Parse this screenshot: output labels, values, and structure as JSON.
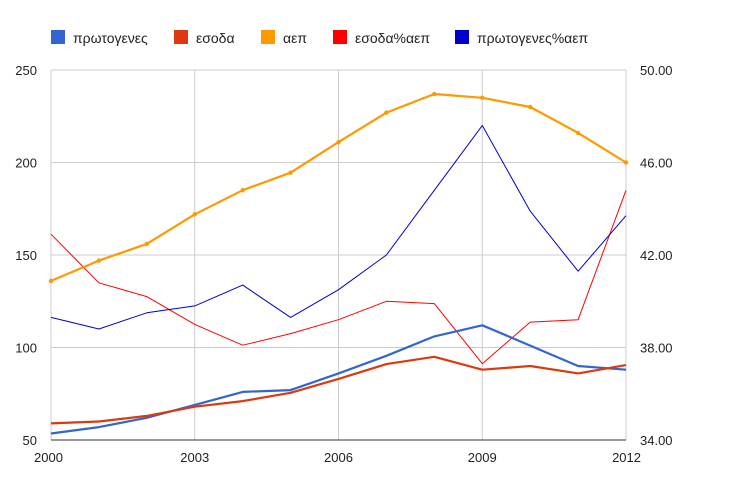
{
  "chart_data": {
    "type": "line",
    "title": "",
    "xlabel": "",
    "ylabel_left": "",
    "ylabel_right": "",
    "x": [
      2000,
      2001,
      2002,
      2003,
      2004,
      2005,
      2006,
      2007,
      2008,
      2009,
      2010,
      2011,
      2012
    ],
    "x_ticks": [
      "2000",
      "2003",
      "2006",
      "2009",
      "2012"
    ],
    "y_left_range": [
      50,
      250
    ],
    "y_left_ticks": [
      "50",
      "100",
      "150",
      "200",
      "250"
    ],
    "y_right_range": [
      34,
      50
    ],
    "y_right_ticks": [
      "34.00",
      "38.00",
      "42.00",
      "46.00",
      "50.00"
    ],
    "grid": true,
    "legend_position": "top",
    "series": [
      {
        "name": "πρωτογενες",
        "axis": "left",
        "color": "#3366cc",
        "width": 2.2,
        "points": false,
        "values": [
          53.5,
          57,
          62,
          69,
          76,
          77,
          86,
          95.5,
          106,
          112,
          101,
          90,
          88
        ]
      },
      {
        "name": "εσοδα",
        "axis": "left",
        "color": "#dc3912",
        "width": 2.2,
        "points": false,
        "values": [
          59,
          60,
          63,
          68,
          71,
          75.5,
          83,
          91,
          95,
          88,
          90,
          86,
          90.5
        ]
      },
      {
        "name": "αεπ",
        "axis": "left",
        "color": "#ff9900",
        "width": 2.2,
        "points": true,
        "values": [
          136,
          147,
          156,
          172,
          185,
          194.5,
          211,
          227,
          237,
          235,
          230,
          216,
          200
        ]
      },
      {
        "name": "εσοδα%αεπ",
        "axis": "right",
        "color": "#ff0000",
        "width": 1,
        "points": false,
        "values": [
          42.9,
          40.8,
          40.2,
          39.0,
          38.1,
          38.6,
          39.2,
          40.0,
          39.9,
          37.3,
          39.1,
          39.2,
          44.8
        ]
      },
      {
        "name": "πρωτογενες%αεπ",
        "axis": "right",
        "color": "#0000cc",
        "width": 1,
        "points": false,
        "values": [
          39.3,
          38.8,
          39.5,
          39.8,
          40.7,
          39.3,
          40.5,
          42.0,
          44.8,
          47.6,
          43.9,
          41.3,
          43.7
        ]
      }
    ]
  }
}
